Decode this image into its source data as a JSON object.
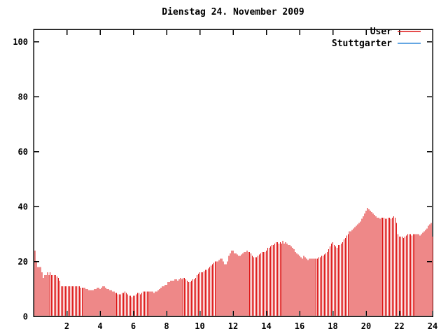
{
  "title": "Dienstag 24. November 2009",
  "legend": [
    {
      "label": "User",
      "color": "#dd1111"
    },
    {
      "label": "Stuttgarter",
      "color": "#1c7ed6"
    }
  ],
  "chart_data": {
    "type": "bar",
    "style": "impulses",
    "title": "Dienstag 24. November 2009",
    "xlabel": "",
    "ylabel": "",
    "x_unit": "hour of day",
    "interval_minutes": 5,
    "xlim": [
      0,
      24
    ],
    "ylim": [
      0,
      104.5
    ],
    "xticks": [
      2,
      4,
      6,
      8,
      10,
      12,
      14,
      16,
      18,
      20,
      22,
      24
    ],
    "yticks": [
      0,
      20,
      40,
      60,
      80,
      100
    ],
    "grid": false,
    "legend_position": "top-right",
    "series": [
      {
        "name": "User",
        "color": "#dd1111",
        "start_hour": 0.0833,
        "values": [
          24,
          20,
          18,
          18,
          18,
          16,
          14,
          15,
          15,
          16,
          15,
          16,
          15,
          15,
          15,
          15,
          14.5,
          14,
          13,
          11,
          11,
          11,
          11,
          11,
          11,
          11,
          11,
          11,
          11,
          11,
          11,
          11,
          11,
          10.5,
          10.5,
          10.5,
          10.5,
          10,
          10,
          9.5,
          9.5,
          9.5,
          9.5,
          10,
          10,
          10.5,
          10.5,
          10,
          10.5,
          11,
          11,
          10.5,
          10,
          10,
          9.5,
          9.5,
          9,
          9,
          8.5,
          8.5,
          8,
          8,
          8,
          8.5,
          8.5,
          9,
          8.5,
          8,
          7.5,
          7.5,
          7,
          7.5,
          7.5,
          8,
          8.5,
          8.5,
          8,
          8.5,
          9,
          9,
          9,
          9,
          9,
          9,
          9,
          9,
          8.5,
          9,
          9,
          9.5,
          10,
          10.5,
          11,
          11,
          11.5,
          11.5,
          12.5,
          12.5,
          13,
          13,
          13,
          13.5,
          13.5,
          13,
          13.5,
          14,
          13.5,
          14,
          14,
          13.5,
          13,
          12.5,
          12.5,
          13,
          13.5,
          13.5,
          14,
          15,
          15.5,
          16,
          16,
          16,
          16.5,
          17,
          17,
          17.5,
          18,
          18.5,
          19,
          19.5,
          20,
          20,
          20,
          20.5,
          21,
          21,
          20,
          19,
          19,
          20,
          22,
          23,
          24,
          24,
          23,
          23,
          22.5,
          22,
          22,
          22.5,
          23,
          23.5,
          23.5,
          24,
          23.5,
          23.5,
          23,
          22,
          21.5,
          21.5,
          21.5,
          22,
          22.5,
          23,
          23.5,
          23.5,
          23.5,
          24,
          25,
          25,
          25.5,
          26,
          26,
          26.5,
          27,
          27,
          26.5,
          27,
          26.5,
          27.5,
          26.5,
          27,
          26.5,
          26,
          26,
          25.5,
          25,
          24.5,
          23.5,
          23,
          22.5,
          22,
          21.5,
          21,
          22,
          21.5,
          21,
          20.5,
          21,
          21,
          21,
          21,
          21,
          21,
          21,
          21.5,
          21.5,
          22,
          22,
          22.5,
          23,
          23.5,
          24.5,
          25.5,
          26.5,
          27,
          26,
          25.5,
          25,
          26,
          26,
          26.5,
          27,
          28,
          28.5,
          29.5,
          30,
          31,
          31,
          31.5,
          32,
          32.5,
          33,
          33.5,
          34,
          34.5,
          35.5,
          36.5,
          37.5,
          38.5,
          39.5,
          39,
          38.5,
          38,
          37.5,
          37,
          36.5,
          36,
          36,
          35.5,
          36,
          36,
          36,
          35.5,
          35.5,
          36,
          36,
          35.5,
          36,
          36.5,
          36,
          34,
          30,
          29,
          29,
          29,
          28.5,
          29,
          29.5,
          30,
          30,
          30,
          29.5,
          30,
          30,
          30,
          30,
          30,
          29.5,
          30,
          30.5,
          31,
          31.5,
          32,
          33,
          33.5,
          34,
          29
        ]
      },
      {
        "name": "Stuttgarter",
        "color": "#1c7ed6",
        "values": []
      }
    ]
  }
}
